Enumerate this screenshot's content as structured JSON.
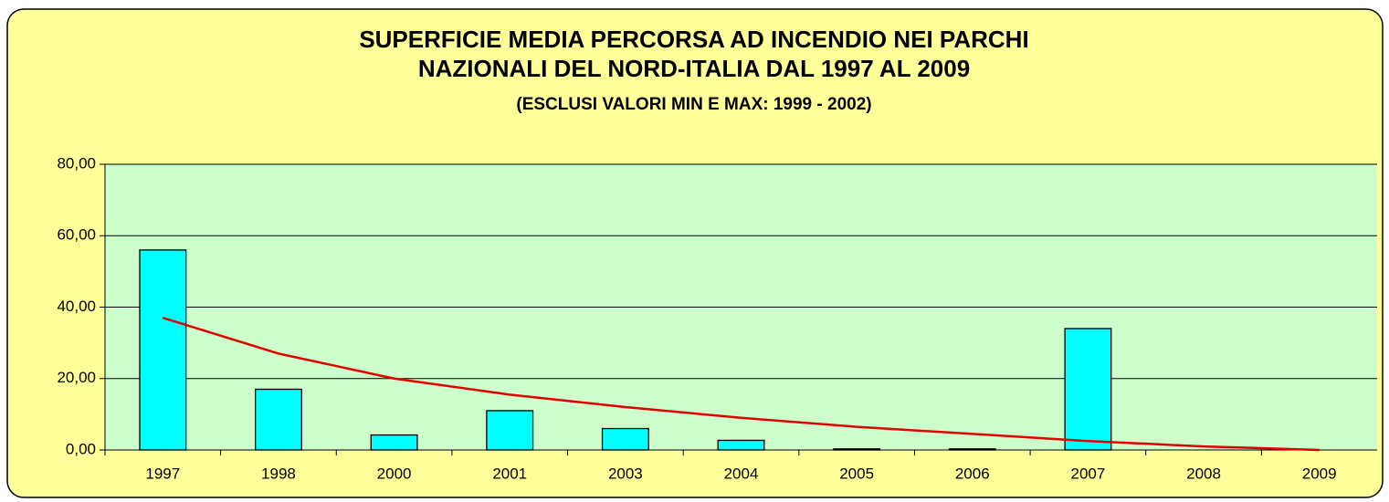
{
  "chart_data": {
    "type": "bar",
    "title": [
      "SUPERFICIE MEDIA PERCORSA AD INCENDIO NEI PARCHI",
      "NAZIONALI DEL NORD-ITALIA DAL 1997 AL 2009"
    ],
    "subtitle": "(ESCLUSI VALORI MIN E MAX: 1999 - 2002)",
    "categories": [
      "1997",
      "1998",
      "2000",
      "2001",
      "2003",
      "2004",
      "2005",
      "2006",
      "2007",
      "2008",
      "2009"
    ],
    "values": [
      56,
      17,
      4.2,
      11,
      6,
      2.7,
      0.3,
      0.3,
      34,
      0,
      0
    ],
    "color": "#00ffff",
    "trend": {
      "color": "#e00000",
      "values": [
        37,
        27,
        20,
        15.5,
        12,
        9,
        6.5,
        4.5,
        2.5,
        1,
        0
      ]
    },
    "ylim": [
      0,
      80
    ],
    "yticks": [
      {
        "value": 0,
        "label": "0,00"
      },
      {
        "value": 20,
        "label": "20,00"
      },
      {
        "value": 40,
        "label": "40,00"
      },
      {
        "value": 60,
        "label": "60,00"
      },
      {
        "value": 80,
        "label": "80,00"
      }
    ],
    "grid": true
  }
}
